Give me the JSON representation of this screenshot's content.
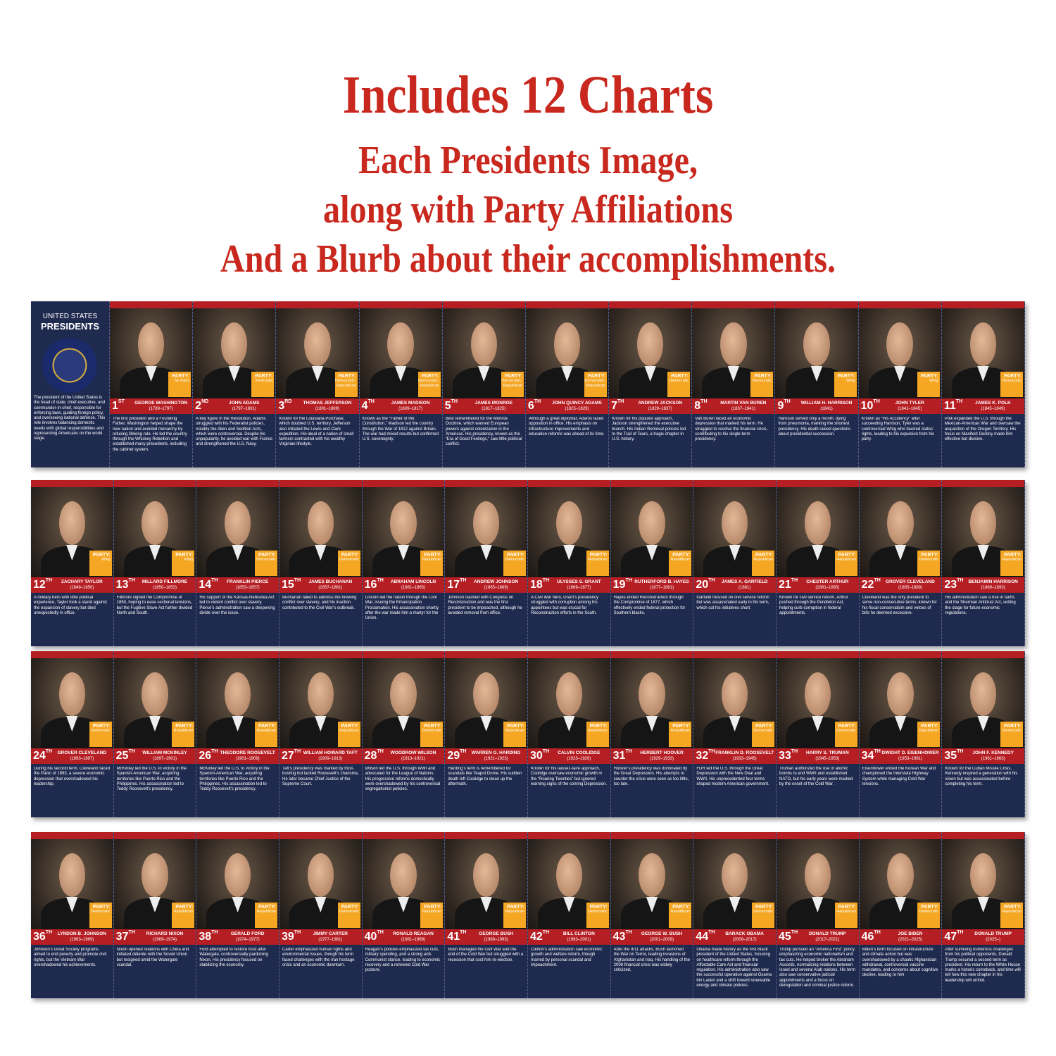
{
  "header": {
    "title": "Includes 12 Charts",
    "lines": [
      "Each Presidents Image,",
      "along with Party Affiliations",
      "And a Blurb about their accomplishments."
    ]
  },
  "intro": {
    "title_top": "UNITED STATES",
    "title_bottom": "PRESIDENTS",
    "text": "The president of the United States is the head of state, chief executive, and commander-in-chief, responsible for enforcing laws, guiding foreign policy, and overseeing national defense. This role involves balancing domestic needs with global responsibilities and representing Americans on the world stage."
  },
  "party_label": "PARTY:",
  "presidents": [
    {
      "number": "1",
      "suffix": "ST",
      "name": "GEORGE WASHINGTON",
      "years": "(1789–1797)",
      "party": "No Party",
      "blurb": "The first president and a Founding Father, Washington helped shape the new nation and avoided monarchy by refusing lifelong rule. He led the country through the Whiskey Rebellion and established many precedents, including the cabinet system."
    },
    {
      "number": "2",
      "suffix": "ND",
      "name": "JOHN ADAMS",
      "years": "(1797–1801)",
      "party": "Federalist",
      "blurb": "A key figure in the Revolution, Adams struggled with his Federalist policies, notably the Alien and Sedition Acts, which were controversial. Despite his unpopularity, he avoided war with France and strengthened the U.S. Navy."
    },
    {
      "number": "3",
      "suffix": "RD",
      "name": "THOMAS JEFFERSON",
      "years": "(1801–1809)",
      "party": "Democratic-Republican",
      "blurb": "Known for the Louisiana Purchase, which doubled U.S. territory, Jefferson also initiated the Lewis and Clark expedition. His ideal of a nation of small farmers contrasted with his wealthy Virginian lifestyle."
    },
    {
      "number": "4",
      "suffix": "TH",
      "name": "JAMES MADISON",
      "years": "(1809–1817)",
      "party": "Democratic-Republican",
      "blurb": "Known as the “Father of the Constitution,” Madison led the country through the War of 1812 against Britain. The war had mixed results but confirmed U.S. sovereignty."
    },
    {
      "number": "5",
      "suffix": "TH",
      "name": "JAMES MONROE",
      "years": "(1817–1825)",
      "party": "Democratic-Republican",
      "blurb": "Best remembered for the Monroe Doctrine, which warned European powers against colonization in the Americas. His presidency, known as the “Era of Good Feelings,” saw little political conflict."
    },
    {
      "number": "6",
      "suffix": "TH",
      "name": "JOHN QUINCY ADAMS",
      "years": "(1825–1829)",
      "party": "Democratic-Republican",
      "blurb": "Although a great diplomat, Adams faced opposition in office. His emphasis on infrastructure improvements and education reforms was ahead of its time."
    },
    {
      "number": "7",
      "suffix": "TH",
      "name": "ANDREW JACKSON",
      "years": "(1829–1837)",
      "party": "Democratic",
      "blurb": "Known for his populist approach, Jackson strengthened the executive branch. His Indian Removal policies led to the Trail of Tears, a tragic chapter in U.S. history."
    },
    {
      "number": "8",
      "suffix": "TH",
      "name": "MARTIN VAN BUREN",
      "years": "(1837–1841)",
      "party": "Democratic",
      "blurb": "Van Buren faced an economic depression that marked his term. He struggled to resolve the financial crisis, contributing to his single-term presidency."
    },
    {
      "number": "9",
      "suffix": "TH",
      "name": "WILLIAM H. HARRISON",
      "years": "(1841)",
      "party": "Whig",
      "blurb": "Harrison served only a month, dying from pneumonia, marking the shortest presidency. His death raised questions about presidential succession."
    },
    {
      "number": "10",
      "suffix": "TH",
      "name": "JOHN TYLER",
      "years": "(1841–1845)",
      "party": "Whig",
      "blurb": "Known as “His Accidency” after succeeding Harrison, Tyler was a controversial Whig who favored states’ rights, leading to his expulsion from his party."
    },
    {
      "number": "11",
      "suffix": "TH",
      "name": "JAMES K. POLK",
      "years": "(1845–1849)",
      "party": "Democratic",
      "blurb": "Polk expanded the U.S. through the Mexican-American War and oversaw the acquisition of the Oregon Territory. His focus on Manifest Destiny made him effective but divisive."
    },
    {
      "number": "12",
      "suffix": "TH",
      "name": "ZACHARY TAYLOR",
      "years": "(1849–1850)",
      "party": "Whig",
      "blurb": "A military hero with little political experience, Taylor took a stand against the expansion of slavery but died unexpectedly in office."
    },
    {
      "number": "13",
      "suffix": "TH",
      "name": "MILLARD FILLMORE",
      "years": "(1850–1853)",
      "party": "Whig",
      "blurb": "Fillmore signed the Compromise of 1850, hoping to ease sectional tensions, but the Fugitive Slave Act further divided North and South."
    },
    {
      "number": "14",
      "suffix": "TH",
      "name": "FRANKLIN PIERCE",
      "years": "(1853–1857)",
      "party": "Democratic",
      "blurb": "His support of the Kansas-Nebraska Act led to violent conflict over slavery. Pierce’s administration saw a deepening divide over the issue."
    },
    {
      "number": "15",
      "suffix": "TH",
      "name": "JAMES BUCHANAN",
      "years": "(1857–1861)",
      "party": "Democratic",
      "blurb": "Buchanan failed to address the brewing conflict over slavery, and his inaction contributed to the Civil War’s outbreak."
    },
    {
      "number": "16",
      "suffix": "TH",
      "name": "ABRAHAM LINCOLN",
      "years": "(1861–1865)",
      "party": "Republican",
      "blurb": "Lincoln led the nation through the Civil War, issuing the Emancipation Proclamation. His assassination shortly after the war made him a martyr for the Union."
    },
    {
      "number": "17",
      "suffix": "TH",
      "name": "ANDREW JOHNSON",
      "years": "(1865–1869)",
      "party": "Democratic",
      "blurb": "Johnson clashed with Congress on Reconstruction and was the first president to be impeached, although he avoided removal from office."
    },
    {
      "number": "18",
      "suffix": "TH",
      "name": "ULYSSES S. GRANT",
      "years": "(1869–1877)",
      "party": "Republican",
      "blurb": "A Civil War hero, Grant’s presidency struggled with corruption among his appointees but was crucial for Reconstruction efforts in the South."
    },
    {
      "number": "19",
      "suffix": "TH",
      "name": "RUTHERFORD B. HAYES",
      "years": "(1877–1881)",
      "party": "Republican",
      "blurb": "Hayes ended Reconstruction through the Compromise of 1877, which effectively ended federal protection for Southern blacks."
    },
    {
      "number": "20",
      "suffix": "TH",
      "name": "JAMES A. GARFIELD",
      "years": "(1881)",
      "party": "Republican",
      "blurb": "Garfield focused on civil service reform but was assassinated early in his term, which cut his initiatives short."
    },
    {
      "number": "21",
      "suffix": "TH",
      "name": "CHESTER ARTHUR",
      "years": "(1881–1885)",
      "party": "Republican",
      "blurb": "Known for civil service reform, Arthur pushed through the Pendleton Act, helping curb corruption in federal appointments."
    },
    {
      "number": "22",
      "suffix": "TH",
      "name": "GROVER CLEVELAND",
      "years": "(1885–1889)",
      "party": "Democratic",
      "blurb": "Cleveland was the only president to serve non-consecutive terms, known for his fiscal conservatism and vetoes of bills he deemed excessive."
    },
    {
      "number": "23",
      "suffix": "TH",
      "name": "BENJAMIN HARRISON",
      "years": "(1889–1893)",
      "party": "Republican",
      "blurb": "His administration saw a rise in tariffs and the Sherman Antitrust Act, setting the stage for future economic regulations."
    },
    {
      "number": "24",
      "suffix": "TH",
      "name": "GROVER CLEVELAND",
      "years": "(1893–1897)",
      "party": "Democratic",
      "blurb": "During his second term, Cleveland faced the Panic of 1893, a severe economic depression that overshadowed his leadership."
    },
    {
      "number": "25",
      "suffix": "TH",
      "name": "WILLIAM MCKINLEY",
      "years": "(1897–1901)",
      "party": "Republican",
      "blurb": "McKinley led the U.S. to victory in the Spanish-American War, acquiring territories like Puerto Rico and the Philippines. His assassination led to Teddy Roosevelt’s presidency."
    },
    {
      "number": "26",
      "suffix": "TH",
      "name": "THEODORE ROOSEVELT",
      "years": "(1901–1909)",
      "party": "Republican",
      "blurb": "McKinley led the U.S. to victory in the Spanish-American War, acquiring territories like Puerto Rico and the Philippines. His assassination led to Teddy Roosevelt’s presidency."
    },
    {
      "number": "27",
      "suffix": "TH",
      "name": "WILLIAM HOWARD TAFT",
      "years": "(1909–1913)",
      "party": "Republican",
      "blurb": "Taft’s presidency was marked by trust-busting but lacked Roosevelt’s charisma. He later became Chief Justice of the Supreme Court."
    },
    {
      "number": "28",
      "suffix": "TH",
      "name": "WOODROW WILSON",
      "years": "(1913–1921)",
      "party": "Democratic",
      "blurb": "Wilson led the U.S. through WWI and advocated for the League of Nations. His progressive reforms domestically were overshadowed by his controversial segregationist policies."
    },
    {
      "number": "29",
      "suffix": "TH",
      "name": "WARREN G. HARDING",
      "years": "(1921–1923)",
      "party": "Republican",
      "blurb": "Harding’s term is remembered for scandals like Teapot Dome. His sudden death left Coolidge to clean up the aftermath."
    },
    {
      "number": "30",
      "suffix": "TH",
      "name": "CALVIN COOLIDGE",
      "years": "(1923–1929)",
      "party": "Republican",
      "blurb": "Known for his laissez-faire approach, Coolidge oversaw economic growth in the “Roaring Twenties” but ignored warning signs of the coming Depression."
    },
    {
      "number": "31",
      "suffix": "TH",
      "name": "HERBERT HOOVER",
      "years": "(1929–1933)",
      "party": "Republican",
      "blurb": "Hoover’s presidency was dominated by the Great Depression. His attempts to counter the crisis were seen as too little, too late."
    },
    {
      "number": "32",
      "suffix": "TH",
      "name": "FRANKLIN D. ROOSEVELT",
      "years": "(1933–1945)",
      "party": "Democratic",
      "blurb": "FDR led the U.S. through the Great Depression with the New Deal and WWII. His unprecedented four terms shaped modern American government."
    },
    {
      "number": "33",
      "suffix": "TH",
      "name": "HARRY S. TRUMAN",
      "years": "(1945–1953)",
      "party": "Democratic",
      "blurb": "Truman authorized the use of atomic bombs to end WWII and established NATO, but his early years were marked by the onset of the Cold War."
    },
    {
      "number": "34",
      "suffix": "TH",
      "name": "DWIGHT D. EISENHOWER",
      "years": "(1953–1961)",
      "party": "Republican",
      "blurb": "Eisenhower ended the Korean War and championed the Interstate Highway System while managing Cold War tensions."
    },
    {
      "number": "35",
      "suffix": "TH",
      "name": "JOHN F. KENNEDY",
      "years": "(1961–1963)",
      "party": "Democratic",
      "blurb": "Known for the Cuban Missile Crisis, Kennedy inspired a generation with his vision but was assassinated before completing his term."
    },
    {
      "number": "36",
      "suffix": "TH",
      "name": "LYNDON B. JOHNSON",
      "years": "(1963–1969)",
      "party": "Democratic",
      "blurb": "Johnson’s Great Society programs aimed to end poverty and promote civil rights, but the Vietnam War overshadowed his achievements."
    },
    {
      "number": "37",
      "suffix": "TH",
      "name": "RICHARD NIXON",
      "years": "(1969–1974)",
      "party": "Republican",
      "blurb": "Nixon opened relations with China and initiated détente with the Soviet Union but resigned amid the Watergate scandal."
    },
    {
      "number": "38",
      "suffix": "TH",
      "name": "GERALD FORD",
      "years": "(1974–1977)",
      "party": "Republican",
      "blurb": "Ford attempted to restore trust after Watergate, controversially pardoning Nixon. His presidency focused on stabilizing the economy."
    },
    {
      "number": "39",
      "suffix": "TH",
      "name": "JIMMY CARTER",
      "years": "(1977–1981)",
      "party": "Democratic",
      "blurb": "Carter emphasized human rights and environmental issues, though his term faced challenges with the Iran hostage crisis and an economic downturn."
    },
    {
      "number": "40",
      "suffix": "TH",
      "name": "RONALD REAGAN",
      "years": "(1981–1989)",
      "party": "Republican",
      "blurb": "Reagan’s policies emphasized tax cuts, military spending, and a strong anti-Communist stance, leading to economic recovery and a renewed Cold War posture."
    },
    {
      "number": "41",
      "suffix": "TH",
      "name": "GEORGE BUSH",
      "years": "(1989–1993)",
      "party": "Republican",
      "blurb": "Bush managed the Gulf War and the end of the Cold War but struggled with a recession that cost him re-election."
    },
    {
      "number": "42",
      "suffix": "TH",
      "name": "BILL CLINTON",
      "years": "(1993–2001)",
      "party": "Democratic",
      "blurb": "Clinton’s administration saw economic growth and welfare reform, though marred by personal scandal and impeachment."
    },
    {
      "number": "43",
      "suffix": "TH",
      "name": "GEORGE W. BUSH",
      "years": "(2001–2009)",
      "party": "Republican",
      "blurb": "After the 9/11 attacks, Bush launched the War on Terror, leading invasions of Afghanistan and Iraq. His handling of the 2008 financial crisis was widely criticized."
    },
    {
      "number": "44",
      "suffix": "TH",
      "name": "BARACK OBAMA",
      "years": "(2009–2017)",
      "party": "Democratic",
      "blurb": "Obama made history as the first Black president of the United States, focusing on healthcare reform through the Affordable Care Act and financial regulation. His administration also saw the successful operation against Osama bin Laden and a shift toward renewable energy and climate policies."
    },
    {
      "number": "45",
      "suffix": "TH",
      "name": "DONALD TRUMP",
      "years": "(2017–2021)",
      "party": "Republican",
      "blurb": "Trump pursued an “America First” policy, emphasizing economic nationalism and tax cuts. He helped broker the Abraham Accords, normalizing relations between Israel and several Arab nations. His term also saw conservative judicial appointments and a focus on deregulation and criminal justice reform."
    },
    {
      "number": "46",
      "suffix": "TH",
      "name": "JOE BIDEN",
      "years": "(2021–2025)",
      "party": "Democratic",
      "blurb": "Biden’s term focused on infrastructure and climate action but was overshadowed by a chaotic Afghanistan withdrawal, controversial vaccine mandates, and concerns about cognitive decline, leading to him"
    },
    {
      "number": "47",
      "suffix": "TH",
      "name": "DONALD TRUMP",
      "years": "(2025–)",
      "party": "Republican",
      "blurb": "After surviving numerous challenges from his political opponents, Donald Trump secured a second term as president. His return to the White House marks a historic comeback, and time will tell how this new chapter in his leadership will unfold."
    }
  ]
}
